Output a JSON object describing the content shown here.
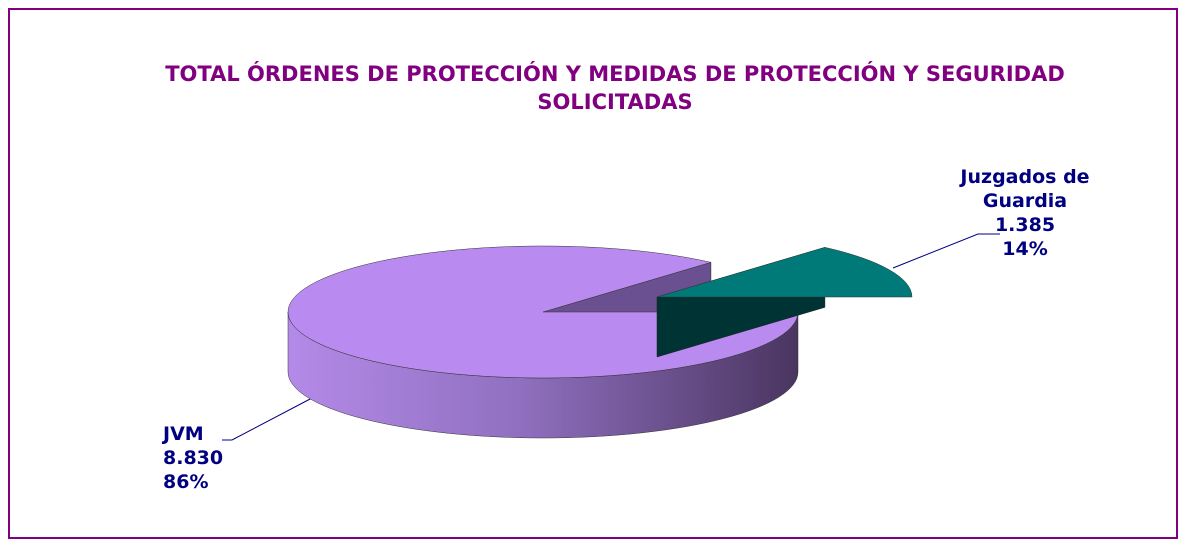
{
  "chart_data": {
    "type": "pie3d",
    "title": "TOTAL ÓRDENES DE PROTECCIÓN Y MEDIDAS DE PROTECCIÓN Y SEGURIDAD SOLICITADAS",
    "categories": [
      "JVM",
      "Juzgados de Guardia"
    ],
    "values": [
      8830,
      1385
    ],
    "value_labels": [
      "8.830",
      "1.385"
    ],
    "percent_labels": [
      "86%",
      "14%"
    ],
    "colors": [
      "#b98af0",
      "#007a78"
    ]
  }
}
